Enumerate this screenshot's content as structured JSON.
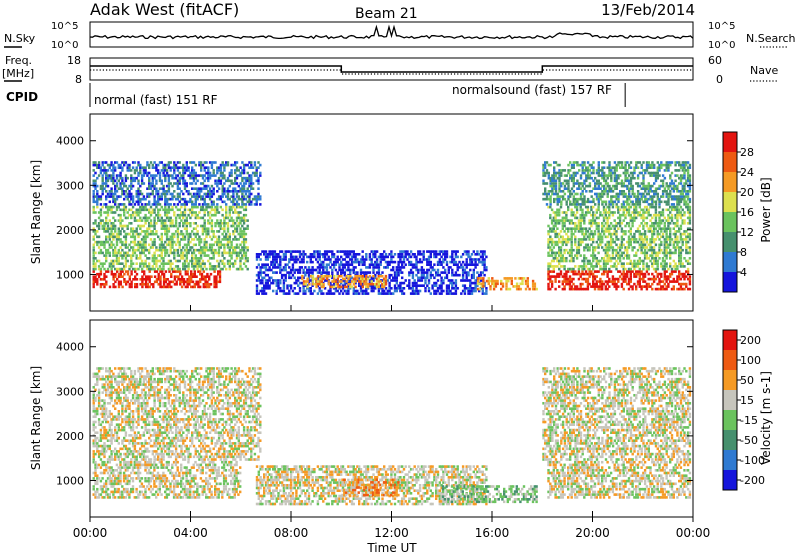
{
  "header": {
    "station": "Adak West (fitACF)",
    "beam": "Beam 21",
    "date": "13/Feb/2014"
  },
  "noise_panel": {
    "left_label": "N.Sky",
    "right_label": "N.Search",
    "left_ticks": [
      "10^5",
      "10^0"
    ],
    "right_ticks": [
      "10^5",
      "10^0"
    ]
  },
  "freq_panel": {
    "left_label": "Freq.",
    "left_unit": "[MHz]",
    "left_ticks": [
      "18",
      "8"
    ],
    "right_label": "Nave",
    "right_ticks": [
      "60",
      "0"
    ]
  },
  "cpid_panel": {
    "label": "CPID",
    "modes": [
      {
        "text": "normal (fast) 151 RF",
        "start_hour": 0,
        "end_hour": 21.3
      },
      {
        "text": "normalsound (fast) 157 RF",
        "start_hour": 21.3,
        "end_hour": 24
      }
    ]
  },
  "chart_data": [
    {
      "type": "heatmap",
      "panel": "power",
      "ylabel": "Slant Range [km]",
      "ylim": [
        180,
        4600
      ],
      "yticks": [
        "1000",
        "2000",
        "3000",
        "4000"
      ],
      "colorbar": {
        "label": "Power [dB]",
        "ticks": [
          "4",
          "8",
          "12",
          "16",
          "20",
          "24",
          "28"
        ],
        "colors": [
          "#1515dc",
          "#2f7ad2",
          "#46906e",
          "#6bc35e",
          "#dde04e",
          "#f59a24",
          "#ee5a12",
          "#e3140f"
        ]
      },
      "regions": [
        {
          "t0": 0.1,
          "t1": 5.2,
          "r0": 750,
          "r1": 1150,
          "level": 7
        },
        {
          "t0": 0.1,
          "t1": 6.3,
          "r0": 1150,
          "r1": 2600,
          "level": 3
        },
        {
          "t0": 0.1,
          "t1": 6.8,
          "r0": 2600,
          "r1": 3600,
          "level": 1
        },
        {
          "t0": 6.6,
          "t1": 15.8,
          "r0": 600,
          "r1": 1600,
          "level": 0
        },
        {
          "t0": 8.4,
          "t1": 11.8,
          "r0": 750,
          "r1": 1050,
          "level": 5
        },
        {
          "t0": 15.4,
          "t1": 17.8,
          "r0": 700,
          "r1": 1000,
          "level": 5
        },
        {
          "t0": 18.2,
          "t1": 23.9,
          "r0": 700,
          "r1": 1150,
          "level": 7
        },
        {
          "t0": 18.2,
          "t1": 23.9,
          "r0": 1150,
          "r1": 2600,
          "level": 3
        },
        {
          "t0": 18.0,
          "t1": 23.9,
          "r0": 2600,
          "r1": 3600,
          "level": 2
        }
      ]
    },
    {
      "type": "heatmap",
      "panel": "velocity",
      "ylabel": "Slant Range [km]",
      "ylim": [
        180,
        4600
      ],
      "yticks": [
        "1000",
        "2000",
        "3000",
        "4000"
      ],
      "colorbar": {
        "label": "Velocity [m s-1]",
        "ticks": [
          "200",
          "100",
          "50",
          "15",
          "-15",
          "-50",
          "-100",
          "-200"
        ],
        "colors": [
          "#1515dc",
          "#2f7ad2",
          "#46906e",
          "#6bc35e",
          "#c6c5bc",
          "#f59a24",
          "#ee5a12",
          "#e3140f"
        ]
      },
      "regions": [
        {
          "t0": 0.1,
          "t1": 6.0,
          "r0": 650,
          "r1": 1500,
          "level": 4
        },
        {
          "t0": 0.1,
          "t1": 6.8,
          "r0": 1500,
          "r1": 3600,
          "level": 4
        },
        {
          "t0": 6.6,
          "t1": 15.8,
          "r0": 500,
          "r1": 1400,
          "level": 4
        },
        {
          "t0": 10.0,
          "t1": 12.3,
          "r0": 700,
          "r1": 1100,
          "level": 5
        },
        {
          "t0": 14.0,
          "t1": 17.8,
          "r0": 550,
          "r1": 950,
          "level": 3
        },
        {
          "t0": 18.2,
          "t1": 23.9,
          "r0": 650,
          "r1": 1500,
          "level": 4
        },
        {
          "t0": 18.0,
          "t1": 23.9,
          "r0": 1500,
          "r1": 3600,
          "level": 4
        }
      ]
    }
  ],
  "x_axis": {
    "label": "Time UT",
    "ticks": [
      "00:00",
      "04:00",
      "08:00",
      "12:00",
      "16:00",
      "20:00",
      "00:00"
    ],
    "hours": [
      0,
      4,
      8,
      12,
      16,
      20,
      24
    ]
  }
}
